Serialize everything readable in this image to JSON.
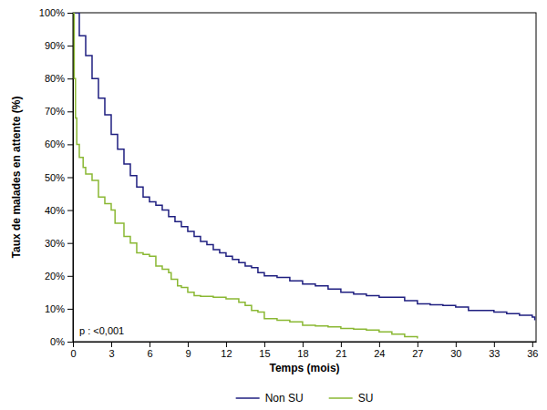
{
  "chart_data": {
    "type": "line",
    "line_style": "step",
    "x_label": "Temps (mois)",
    "y_label": "Taux de malades en attente (%)",
    "annotation": "p : <0,001",
    "legend": "bottom",
    "grid": false,
    "xlim": [
      0,
      36.3
    ],
    "ylim": [
      0,
      100
    ],
    "xticks": [
      0,
      3,
      6,
      9,
      12,
      15,
      18,
      21,
      24,
      27,
      30,
      33,
      36
    ],
    "yticks": [
      {
        "value": 0,
        "label": "0%"
      },
      {
        "value": 10,
        "label": "10%"
      },
      {
        "value": 20,
        "label": "20%"
      },
      {
        "value": 30,
        "label": "30%"
      },
      {
        "value": 40,
        "label": "40%"
      },
      {
        "value": 50,
        "label": "50%"
      },
      {
        "value": 60,
        "label": "60%"
      },
      {
        "value": 70,
        "label": "70%"
      },
      {
        "value": 80,
        "label": "80%"
      },
      {
        "value": 90,
        "label": "90%"
      },
      {
        "value": 100,
        "label": "100%"
      }
    ],
    "series": [
      {
        "name": "Non SU",
        "color": "#1f1f80",
        "x": [
          0,
          0.5,
          1,
          1.5,
          2,
          2.5,
          3,
          3.5,
          4,
          4.5,
          5,
          5.5,
          6,
          6.5,
          7,
          7.5,
          8,
          8.5,
          9,
          9.5,
          10,
          10.5,
          11,
          11.5,
          12,
          12.5,
          13,
          13.5,
          14,
          14.5,
          15,
          16,
          17,
          18,
          19,
          20,
          21,
          22,
          23,
          24,
          25,
          26,
          27,
          28,
          29,
          30,
          31,
          32,
          33,
          34,
          35,
          36,
          36.2
        ],
        "values": [
          100,
          93,
          87,
          80,
          74,
          69,
          63,
          58.5,
          54,
          50.5,
          47,
          44,
          42.5,
          41.5,
          40,
          38,
          36.5,
          35,
          33.5,
          32,
          30.5,
          29.5,
          28,
          27,
          26,
          25,
          24,
          23,
          22.5,
          21,
          20,
          19.5,
          18.5,
          17.5,
          17,
          16,
          15,
          14.5,
          14,
          13.5,
          13.5,
          12.5,
          11.5,
          11.2,
          11,
          10.5,
          9.5,
          9.5,
          9,
          8.5,
          8,
          7.5,
          6.5
        ]
      },
      {
        "name": "SU",
        "color": "#8ab833",
        "x": [
          0,
          0.1,
          0.2,
          0.3,
          0.5,
          0.8,
          1,
          1.5,
          2,
          2.5,
          3,
          3.3,
          3.8,
          4,
          4.5,
          5,
          5.5,
          6,
          6.5,
          7,
          7.5,
          7.7,
          8,
          8.2,
          8.5,
          9,
          9.5,
          10,
          11,
          12,
          13,
          13.5,
          14,
          14.5,
          15,
          16,
          17,
          18,
          19,
          20,
          21,
          22,
          23,
          24,
          25,
          26,
          27
        ],
        "values": [
          100,
          80,
          68,
          60,
          56,
          53,
          51,
          49,
          44,
          42,
          40,
          36,
          36,
          32,
          30,
          27,
          26.5,
          26,
          23,
          22,
          21,
          19,
          19,
          17,
          16.5,
          15,
          14,
          13.8,
          13.5,
          13,
          12,
          11,
          9.5,
          9,
          7,
          6.5,
          6,
          5,
          4.8,
          4.5,
          4,
          3.8,
          3.5,
          3,
          2.3,
          1.5,
          1
        ]
      }
    ]
  }
}
